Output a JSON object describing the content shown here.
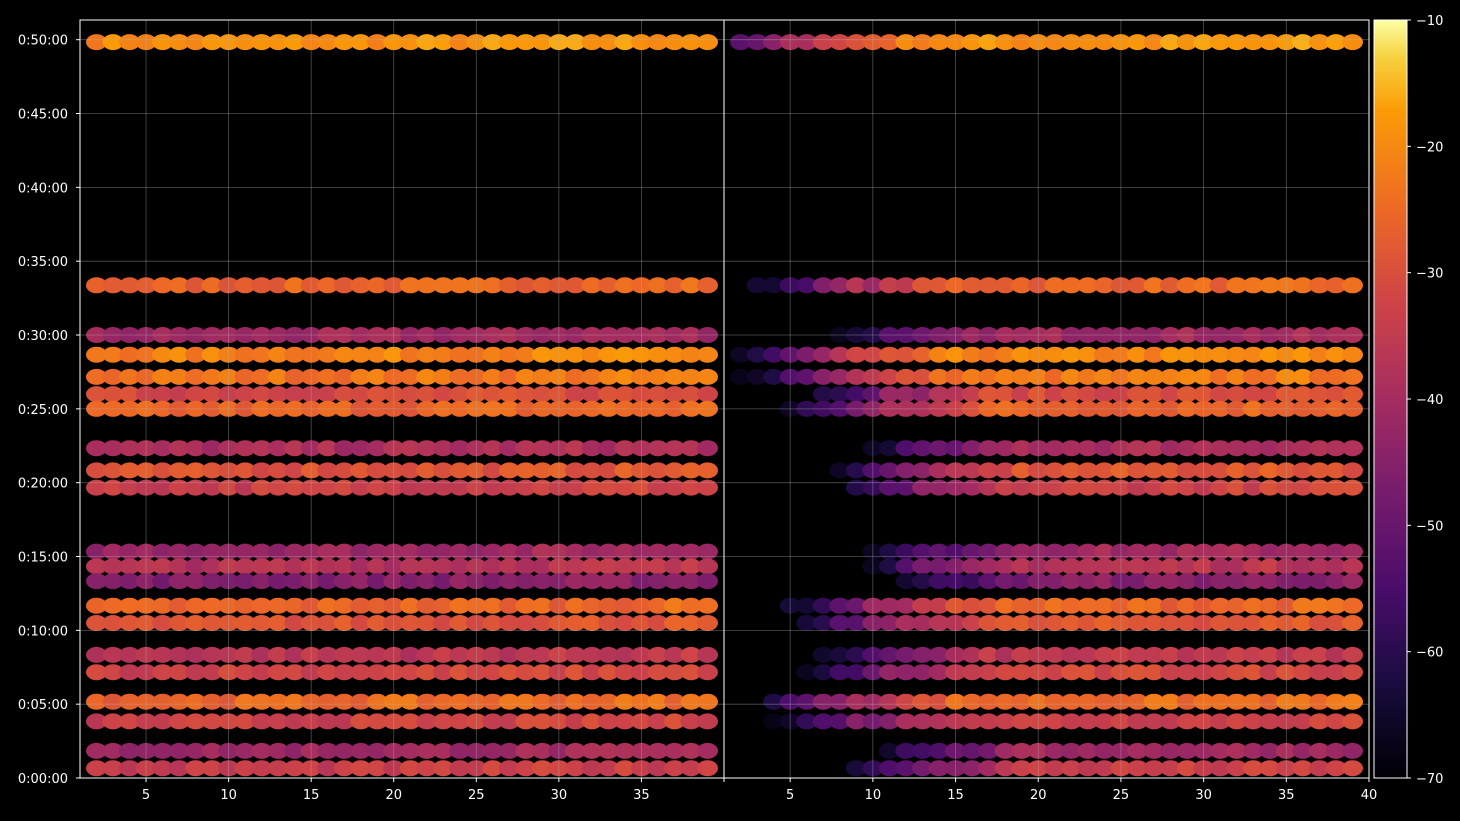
{
  "chart_data": {
    "type": "heatmap",
    "title": "",
    "xlabel": "",
    "ylabel": "",
    "panels": [
      {
        "name": "",
        "xlim": [
          1,
          40
        ],
        "x_ticks": [
          5,
          10,
          15,
          20,
          25,
          30,
          35,
          40
        ],
        "x_tick_labels": [
          "5",
          "10",
          "15",
          "20",
          "25",
          "30",
          "35",
          "40"
        ]
      },
      {
        "name": "",
        "xlim": [
          1,
          40
        ],
        "x_ticks": [
          5,
          10,
          15,
          20,
          25,
          30,
          35,
          40
        ],
        "x_tick_labels": [
          "5",
          "10",
          "15",
          "20",
          "25",
          "30",
          "35",
          "40"
        ]
      }
    ],
    "ylim_seconds": [
      0,
      3080
    ],
    "y_ticks_seconds": [
      0,
      300,
      600,
      900,
      1200,
      1500,
      1800,
      2100,
      2400,
      2700,
      3000
    ],
    "y_tick_labels": [
      "0:00:00",
      "0:05:00",
      "0:10:00",
      "0:15:00",
      "0:20:00",
      "0:25:00",
      "0:30:00",
      "0:35:00",
      "0:40:00",
      "0:45:00",
      "0:50:00"
    ],
    "grid": true,
    "colormap": "inferno",
    "colorbar": {
      "range": [
        -70,
        -10
      ],
      "ticks": [
        -10,
        -20,
        -30,
        -40,
        -50,
        -60,
        -70
      ],
      "tick_labels": [
        "−10",
        "−20",
        "−30",
        "−40",
        "−50",
        "−60",
        "−70"
      ]
    },
    "bands": [
      {
        "t_seconds": 2990,
        "level": -20,
        "panel2_onset": 8
      },
      {
        "t_seconds": 2002,
        "level": -27,
        "panel2_onset": 10
      },
      {
        "t_seconds": 1800,
        "level": -42,
        "panel2_onset": 12
      },
      {
        "t_seconds": 1720,
        "level": -22,
        "panel2_onset": 10
      },
      {
        "t_seconds": 1630,
        "level": -24,
        "panel2_onset": 10
      },
      {
        "t_seconds": 1560,
        "level": -32,
        "panel2_onset": 12
      },
      {
        "t_seconds": 1500,
        "level": -27,
        "panel2_onset": 12
      },
      {
        "t_seconds": 1340,
        "level": -40,
        "panel2_onset": 14
      },
      {
        "t_seconds": 1250,
        "level": -30,
        "panel2_onset": 14
      },
      {
        "t_seconds": 1180,
        "level": -34,
        "panel2_onset": 14
      },
      {
        "t_seconds": 920,
        "level": -42,
        "panel2_onset": 14
      },
      {
        "t_seconds": 860,
        "level": -38,
        "panel2_onset": 14
      },
      {
        "t_seconds": 800,
        "level": -46,
        "panel2_onset": 15
      },
      {
        "t_seconds": 700,
        "level": -27,
        "panel2_onset": 12
      },
      {
        "t_seconds": 630,
        "level": -30,
        "panel2_onset": 12
      },
      {
        "t_seconds": 500,
        "level": -37,
        "panel2_onset": 12
      },
      {
        "t_seconds": 430,
        "level": -33,
        "panel2_onset": 12
      },
      {
        "t_seconds": 310,
        "level": -26,
        "panel2_onset": 10
      },
      {
        "t_seconds": 230,
        "level": -34,
        "panel2_onset": 10
      },
      {
        "t_seconds": 110,
        "level": -42,
        "panel2_onset": 14
      },
      {
        "t_seconds": 40,
        "level": -35,
        "panel2_onset": 14
      }
    ]
  }
}
